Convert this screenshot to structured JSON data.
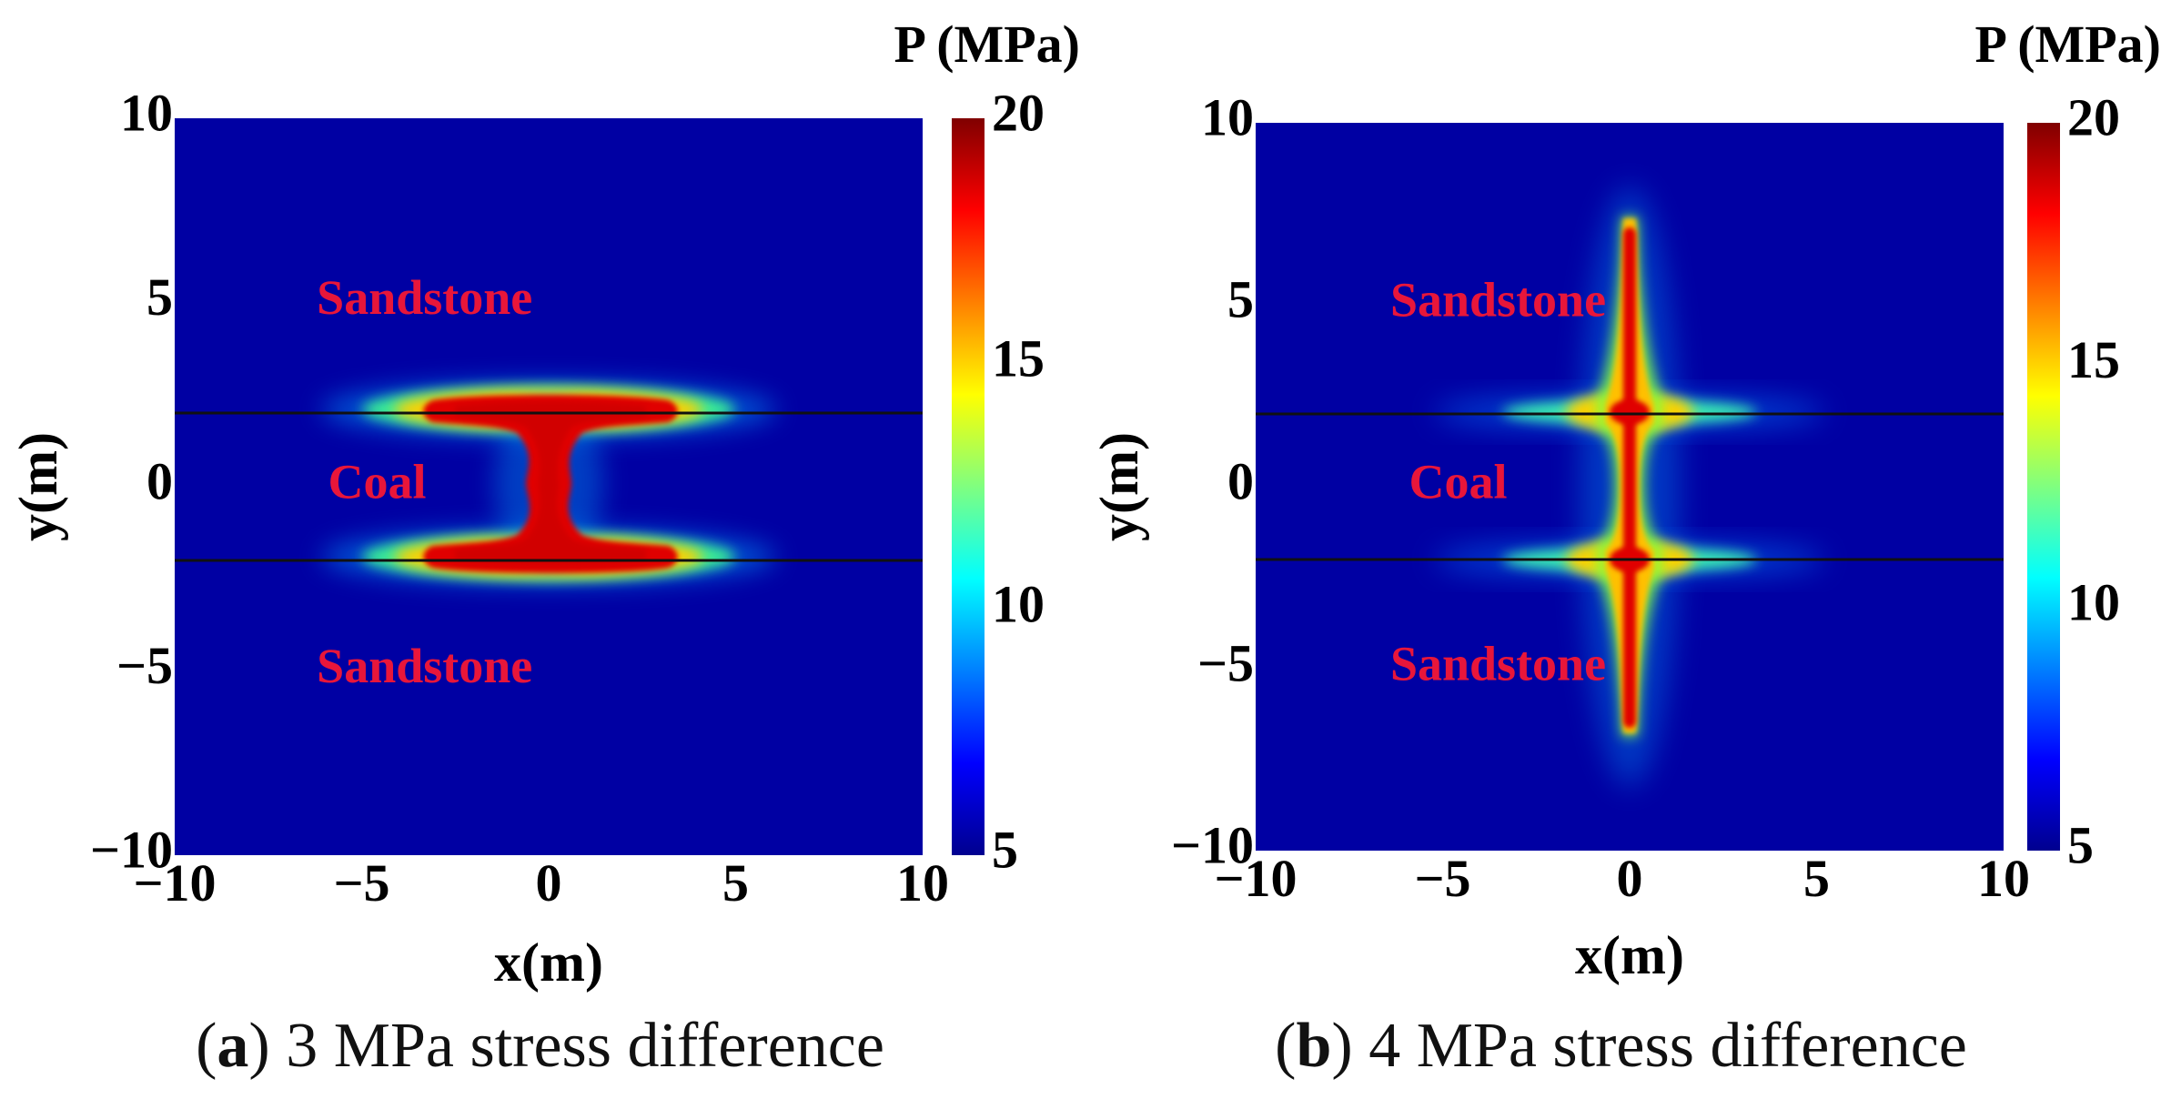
{
  "chart_data": [
    {
      "type": "heatmap",
      "panel_id": "a",
      "caption_letter": "a",
      "caption_text": "3 MPa stress difference",
      "xlabel": "x(m)",
      "ylabel": "y(m)",
      "xlim": [
        -10,
        10
      ],
      "ylim": [
        -10,
        10
      ],
      "xticks": [
        -10,
        -5,
        0,
        5,
        10
      ],
      "yticks": [
        -10,
        -5,
        0,
        5,
        10
      ],
      "xtick_labels": [
        "−10",
        "−5",
        "0",
        "5",
        "10"
      ],
      "ytick_labels": [
        "−10",
        "−5",
        "0",
        "5",
        "10"
      ],
      "colorbar": {
        "title": "P (MPa)",
        "range": [
          5,
          20
        ],
        "ticks": [
          5,
          10,
          15,
          20
        ],
        "tick_labels": [
          "5",
          "10",
          "15",
          "20"
        ]
      },
      "layer_interfaces_y": [
        2,
        -2
      ],
      "regions": [
        {
          "label": "Sandstone",
          "x": -6.2,
          "y": 5
        },
        {
          "label": "Coal",
          "x": -5.9,
          "y": 0
        },
        {
          "label": "Sandstone",
          "x": -6.2,
          "y": -5
        }
      ],
      "fracture": {
        "shape": "hourglass",
        "core_pressure": 20,
        "background_pressure": 5,
        "wing_half_length": 3.2,
        "wing_halo_half_length": 6.0,
        "neck_half_width": 0.7
      }
    },
    {
      "type": "heatmap",
      "panel_id": "b",
      "caption_letter": "b",
      "caption_text": "4 MPa stress difference",
      "xlabel": "x(m)",
      "ylabel": "y(m)",
      "xlim": [
        -10,
        10
      ],
      "ylim": [
        -10,
        10
      ],
      "xticks": [
        -10,
        -5,
        0,
        5,
        10
      ],
      "yticks": [
        -10,
        -5,
        0,
        5,
        10
      ],
      "xtick_labels": [
        "−10",
        "−5",
        "0",
        "5",
        "10"
      ],
      "ytick_labels": [
        "−10",
        "−5",
        "0",
        "5",
        "10"
      ],
      "colorbar": {
        "title": "P (MPa)",
        "range": [
          5,
          20
        ],
        "ticks": [
          5,
          10,
          15,
          20
        ],
        "tick_labels": [
          "5",
          "10",
          "15",
          "20"
        ]
      },
      "layer_interfaces_y": [
        2,
        -2
      ],
      "regions": [
        {
          "label": "Sandstone",
          "x": -6.4,
          "y": 5
        },
        {
          "label": "Coal",
          "x": -5.9,
          "y": 0
        },
        {
          "label": "Sandstone",
          "x": -6.4,
          "y": -5
        }
      ],
      "fracture": {
        "shape": "vertical",
        "core_pressure": 20,
        "background_pressure": 5,
        "top_y": 7.2,
        "bottom_y": -6.8,
        "core_half_width": 0.22,
        "interface_halo_half_length": 4.5
      }
    }
  ]
}
